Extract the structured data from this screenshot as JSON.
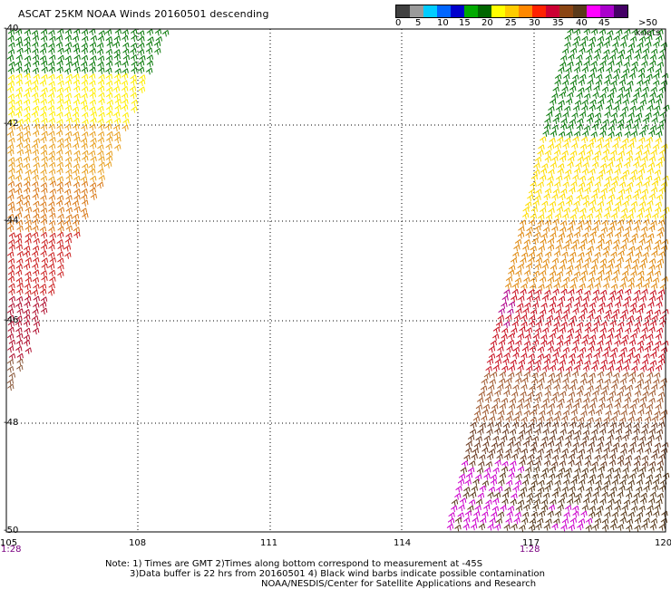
{
  "title": "ASCAT 25KM NOAA Winds 20160501 descending",
  "legend": {
    "colors": [
      "#404040",
      "#9a9a9a",
      "#00ccff",
      "#0066ff",
      "#0000cc",
      "#00aa00",
      "#006600",
      "#ffff00",
      "#ffcc00",
      "#ff8800",
      "#ff2200",
      "#cc0033",
      "#8b4513",
      "#5a3a1a",
      "#ff00ff",
      "#aa00cc",
      "#440066"
    ],
    "labels": [
      "0",
      "5",
      "10",
      "15",
      "20",
      "25",
      "30",
      "35",
      "40",
      "45",
      ">50 knots"
    ]
  },
  "x_axis_labels": [
    "105",
    "108",
    "111",
    "114",
    "117",
    "120"
  ],
  "y_axis_labels": [
    "-40",
    "-42",
    "-44",
    "-46",
    "-48",
    "-50"
  ],
  "time_labels": [
    "1:28",
    "1:28"
  ],
  "notes": [
    "Note: 1) Times are GMT 2)Times along bottom correspond to measurement at -45S",
    "3)Data buffer is 22 hrs from 20160501 4) Black wind barbs indicate possible contamination",
    "NOAA/NESDIS/Center for Satellite Applications and Research"
  ]
}
